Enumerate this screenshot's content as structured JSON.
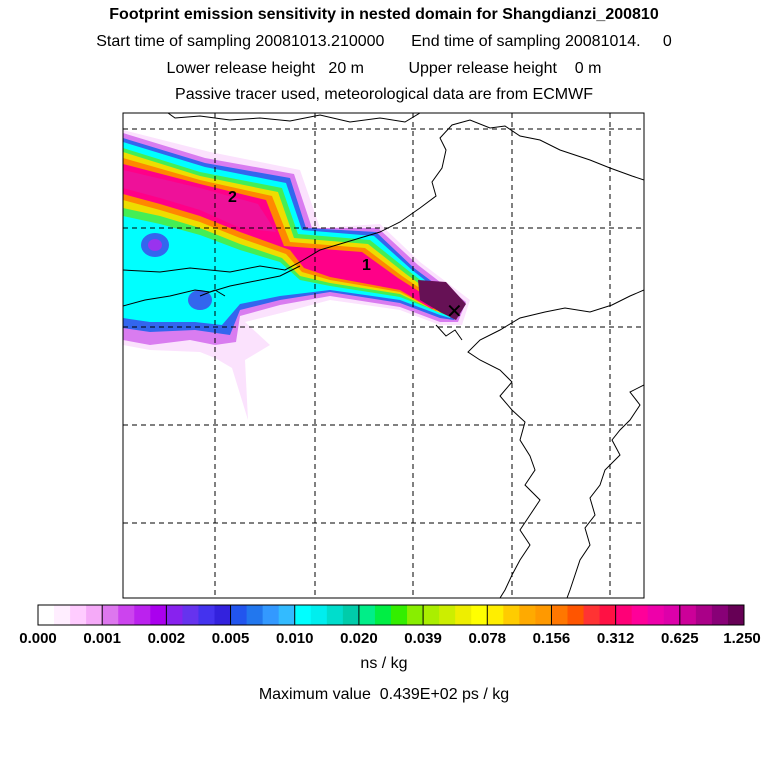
{
  "header": {
    "title": "Footprint emission sensitivity in nested domain for Shangdianzi_200810",
    "line2": "Start time of sampling 20081013.210000      End time of sampling 20081014.     0",
    "line3": "Lower release height   20 m          Upper release height    0 m",
    "line4": "Passive tracer used, meteorological data are from ECMWF"
  },
  "map": {
    "labels": [
      {
        "text": "2",
        "name": "plume-label-2"
      },
      {
        "text": "1",
        "name": "plume-label-1"
      }
    ],
    "receptor_symbol": "✕"
  },
  "colorbar": {
    "ticks": [
      "0.000",
      "0.001",
      "0.002",
      "0.005",
      "0.010",
      "0.020",
      "0.039",
      "0.078",
      "0.156",
      "0.312",
      "0.625",
      "1.250"
    ],
    "colors": [
      "#ffffff",
      "#ffeeff",
      "#ffccff",
      "#f5aaf8",
      "#dd77ee",
      "#cc44ee",
      "#bb22ee",
      "#aa00ee",
      "#8822ee",
      "#6633ee",
      "#4433ee",
      "#3322dd",
      "#2255ee",
      "#2277ee",
      "#3399ff",
      "#33bbff",
      "#00ffff",
      "#00eeee",
      "#00ddcc",
      "#00ccaa",
      "#00ee88",
      "#00ee44",
      "#33ee00",
      "#88ee00",
      "#aaee00",
      "#ccee00",
      "#eeee00",
      "#ffff00",
      "#ffee00",
      "#ffcc00",
      "#ffaa00",
      "#ff9900",
      "#ff7700",
      "#ff5500",
      "#ff3333",
      "#ff1144",
      "#ff0077",
      "#ff0099",
      "#ee00aa",
      "#dd00aa",
      "#cc0099",
      "#aa0088",
      "#880077",
      "#660055"
    ],
    "units": "ns / kg",
    "max_value": "Maximum value  0.439E+02 ps / kg"
  },
  "palette": {
    "magenta": "#ff0088",
    "hotpink": "#ff22aa",
    "orange": "#ff8800",
    "yellow": "#eeee00",
    "green": "#44ee44",
    "cyan": "#00ffff",
    "blue": "#3366ee",
    "purple": "#9933ee",
    "lilac": "#ee99ff",
    "pale": "#fbe2fd",
    "dark": "#551144"
  }
}
